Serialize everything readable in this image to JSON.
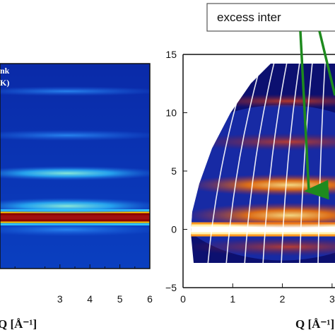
{
  "chart_data": [
    {
      "type": "heatmap",
      "panel": "left",
      "overlay_text": [
        "nk",
        "K)"
      ],
      "xlabel": "Q [Å⁻¹]",
      "ylabel": "",
      "x_ticks": [
        "3",
        "4",
        "5",
        "6"
      ],
      "xlim": [
        1.0,
        6.0
      ],
      "ylim": [
        -5,
        15
      ],
      "colormap": [
        "#0a1e9e",
        "#1a5fe0",
        "#2ec4ff",
        "#9ff0d0",
        "#ffd400",
        "#ff6a00",
        "#8b0000"
      ],
      "bands": [
        {
          "y": 0.0,
          "intensity": 1.0
        },
        {
          "y": 1.1,
          "intensity": 0.45
        },
        {
          "y": -1.2,
          "intensity": 0.3
        },
        {
          "y": 4.3,
          "intensity": 0.35
        },
        {
          "y": 8.0,
          "intensity": 0.18
        },
        {
          "y": 12.3,
          "intensity": 0.12
        }
      ]
    },
    {
      "type": "heatmap",
      "panel": "right",
      "xlabel": "Q [Å⁻¹]",
      "ylabel": "",
      "x_ticks": [
        "0",
        "1",
        "2",
        "3"
      ],
      "y_ticks": [
        "15",
        "10",
        "5",
        "0",
        "−5"
      ],
      "xlim": [
        0,
        3.5
      ],
      "ylim": [
        -5,
        15
      ],
      "colormap": [
        "#000000",
        "#10108a",
        "#2040d0",
        "#b02030",
        "#ff7a00",
        "#ffe080",
        "#ffffff"
      ],
      "bands": [
        {
          "y": 0.0,
          "intensity": 1.0
        },
        {
          "y": 1.2,
          "intensity": 0.75
        },
        {
          "y": -1.5,
          "intensity": 0.45
        },
        {
          "y": 3.8,
          "intensity": 0.6
        },
        {
          "y": 7.5,
          "intensity": 0.4
        },
        {
          "y": 11.0,
          "intensity": 0.25
        }
      ],
      "annotation": "excess inter"
    }
  ],
  "colors": {
    "arrow": "#1e8a1e",
    "contour": "#ffffff"
  }
}
